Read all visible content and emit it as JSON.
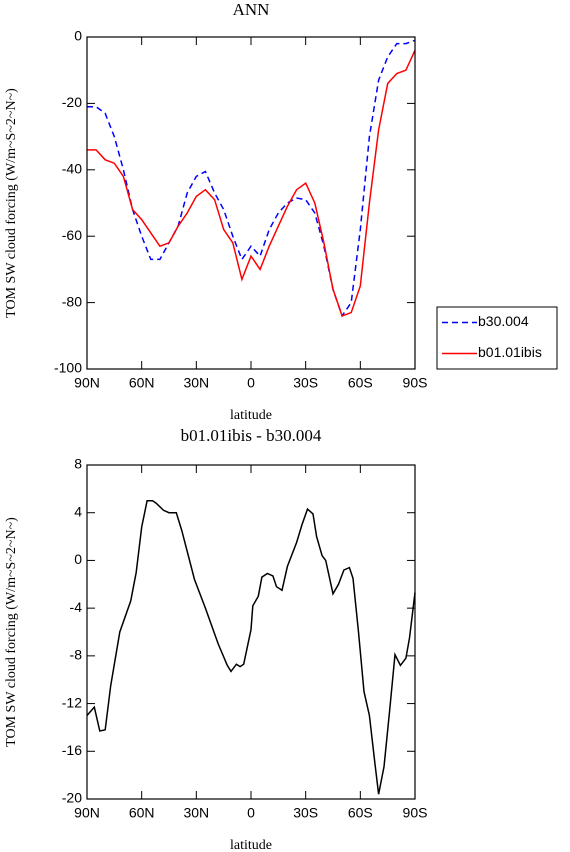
{
  "chart_data": [
    {
      "type": "line",
      "title": "ANN",
      "ylabel": "TOM SW cloud forcing (W/m~S~2~N~)",
      "xlabel": "latitude",
      "x": [
        90,
        85,
        80,
        75,
        70,
        65,
        60,
        55,
        50,
        45,
        40,
        35,
        30,
        25,
        20,
        15,
        10,
        5,
        0,
        -5,
        -10,
        -15,
        -20,
        -25,
        -30,
        -35,
        -40,
        -45,
        -50,
        -55,
        -60,
        -65,
        -70,
        -75,
        -80,
        -85,
        -90
      ],
      "series": [
        {
          "name": "b30.004",
          "color": "#0000ff",
          "line_style": "dashed",
          "values": [
            -21,
            -21,
            -23,
            -30,
            -40,
            -52,
            -60,
            -67,
            -67,
            -62,
            -57,
            -47,
            -42,
            -40.5,
            -47,
            -52,
            -60,
            -67,
            -63,
            -66,
            -58,
            -53,
            -50,
            -48.5,
            -49,
            -53,
            -63,
            -76,
            -84,
            -80,
            -58,
            -30,
            -13,
            -6,
            -2,
            -2,
            -1
          ]
        },
        {
          "name": "b01.01ibis",
          "color": "#ff0000",
          "line_style": "solid",
          "values": [
            -34,
            -34,
            -37,
            -38,
            -42,
            -52,
            -55,
            -59,
            -63,
            -62,
            -57,
            -53,
            -48,
            -46,
            -49,
            -58,
            -62,
            -73,
            -66,
            -70,
            -63,
            -57,
            -51,
            -46,
            -44,
            -50,
            -62,
            -76,
            -84,
            -83,
            -75,
            -50,
            -28,
            -14,
            -11,
            -10,
            -4
          ]
        }
      ],
      "xlim": [
        90,
        -90
      ],
      "xticks": [
        {
          "value": 90,
          "label": "90N"
        },
        {
          "value": 60,
          "label": "60N"
        },
        {
          "value": 30,
          "label": "30N"
        },
        0,
        {
          "value": -30,
          "label": "30S"
        },
        {
          "value": -60,
          "label": "60S"
        },
        {
          "value": -90,
          "label": "90S"
        }
      ],
      "ylim": [
        -100,
        0
      ],
      "yticks": [
        -100,
        -80,
        -60,
        -40,
        -20,
        0
      ],
      "legend": "right"
    },
    {
      "type": "line",
      "title": "b01.01ibis - b30.004",
      "ylabel": "TOM SW cloud forcing (W/m~S~2~N~)",
      "xlabel": "latitude",
      "x": [
        90,
        86,
        83,
        80,
        77,
        72,
        66,
        63,
        60,
        57,
        54,
        52,
        48,
        45,
        41,
        38,
        31,
        25,
        18,
        13,
        11,
        8,
        6,
        4,
        0,
        -1,
        -4,
        -6,
        -9,
        -12,
        -14,
        -17,
        -20,
        -25,
        -28,
        -31,
        -34,
        -36,
        -39,
        -41,
        -45,
        -48,
        -51,
        -54,
        -56,
        -59,
        -62,
        -65,
        -68,
        -70,
        -73,
        -76,
        -79,
        -82,
        -85,
        -87,
        -90
      ],
      "series": [
        {
          "name": null,
          "color": "#000000",
          "line_style": "solid",
          "values": [
            -13,
            -12.3,
            -14.3,
            -14.2,
            -10.5,
            -6,
            -3.4,
            -1,
            2.8,
            5,
            5,
            4.8,
            4.2,
            4,
            4,
            2.5,
            -1.6,
            -4,
            -7,
            -8.8,
            -9.3,
            -8.7,
            -8.9,
            -8.7,
            -5.8,
            -3.8,
            -3,
            -1.4,
            -1.1,
            -1.3,
            -2.2,
            -2.5,
            -0.5,
            1.5,
            3,
            4.3,
            3.9,
            2,
            0.4,
            0,
            -2.8,
            -2,
            -0.8,
            -0.6,
            -1.5,
            -6,
            -11,
            -13,
            -17,
            -19.6,
            -17.3,
            -12.7,
            -7.9,
            -8.8,
            -8.2,
            -6.5,
            -2.7
          ]
        }
      ],
      "xlim": [
        90,
        -90
      ],
      "xticks": [
        {
          "value": 90,
          "label": "90N"
        },
        {
          "value": 60,
          "label": "60N"
        },
        {
          "value": 30,
          "label": "30N"
        },
        0,
        {
          "value": -30,
          "label": "30S"
        },
        {
          "value": -60,
          "label": "60S"
        },
        {
          "value": -90,
          "label": "90S"
        }
      ],
      "ylim": [
        -20,
        8
      ],
      "yticks": [
        -20,
        -16,
        -12,
        -8,
        -4,
        0,
        4,
        8
      ]
    }
  ]
}
